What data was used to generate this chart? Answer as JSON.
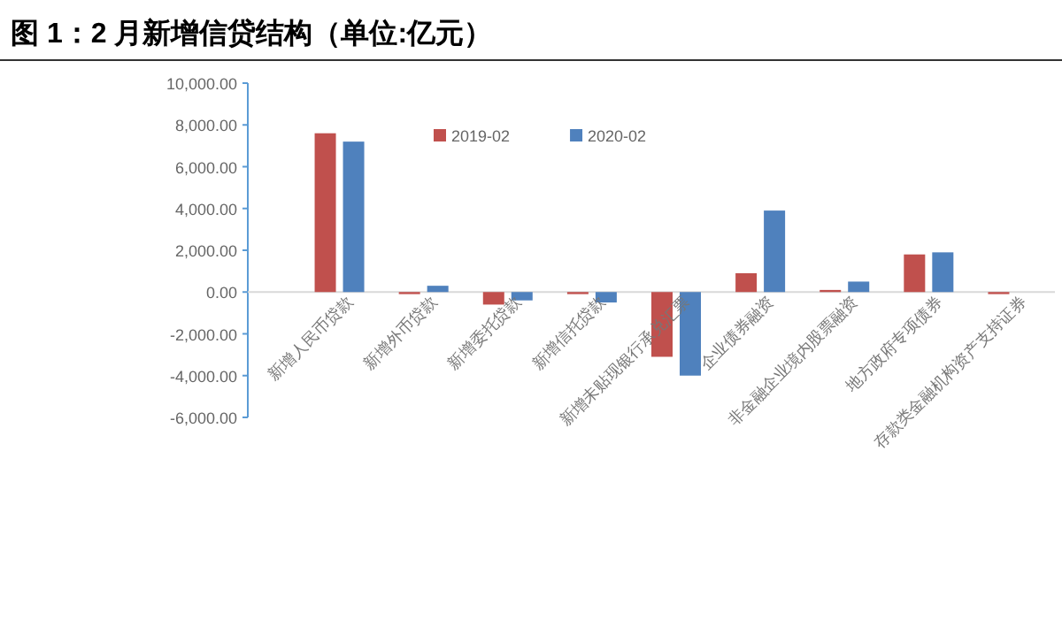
{
  "chart_data": {
    "type": "bar",
    "title": "图 1：2 月新增信贷结构（单位:亿元）",
    "categories": [
      "新增人民币贷款",
      "新增外币贷款",
      "新增委托贷款",
      "新增信托贷款",
      "新增未贴现银行承兑汇票",
      "企业债券融资",
      "非金融企业境内股票融资",
      "地方政府专项债券",
      "存款类金融机构资产支持证券"
    ],
    "series": [
      {
        "name": "2019-02",
        "color": "#c0504d",
        "values": [
          7600,
          -100,
          -600,
          -100,
          -3100,
          900,
          100,
          1800,
          -100
        ]
      },
      {
        "name": "2020-02",
        "color": "#4f81bd",
        "values": [
          7200,
          300,
          -400,
          -500,
          -4000,
          3900,
          500,
          1900,
          null
        ]
      }
    ],
    "ylim": [
      -6000,
      10000
    ],
    "yticks": [
      {
        "value": -6000,
        "label": "-6,000.00"
      },
      {
        "value": -4000,
        "label": "-4,000.00"
      },
      {
        "value": -2000,
        "label": "-2,000.00"
      },
      {
        "value": 0,
        "label": "0.00"
      },
      {
        "value": 2000,
        "label": "2,000.00"
      },
      {
        "value": 4000,
        "label": "4,000.00"
      },
      {
        "value": 6000,
        "label": "6,000.00"
      },
      {
        "value": 8000,
        "label": "8,000.00"
      },
      {
        "value": 10000,
        "label": "10,000.00"
      }
    ],
    "legend": "top",
    "grid": false
  }
}
